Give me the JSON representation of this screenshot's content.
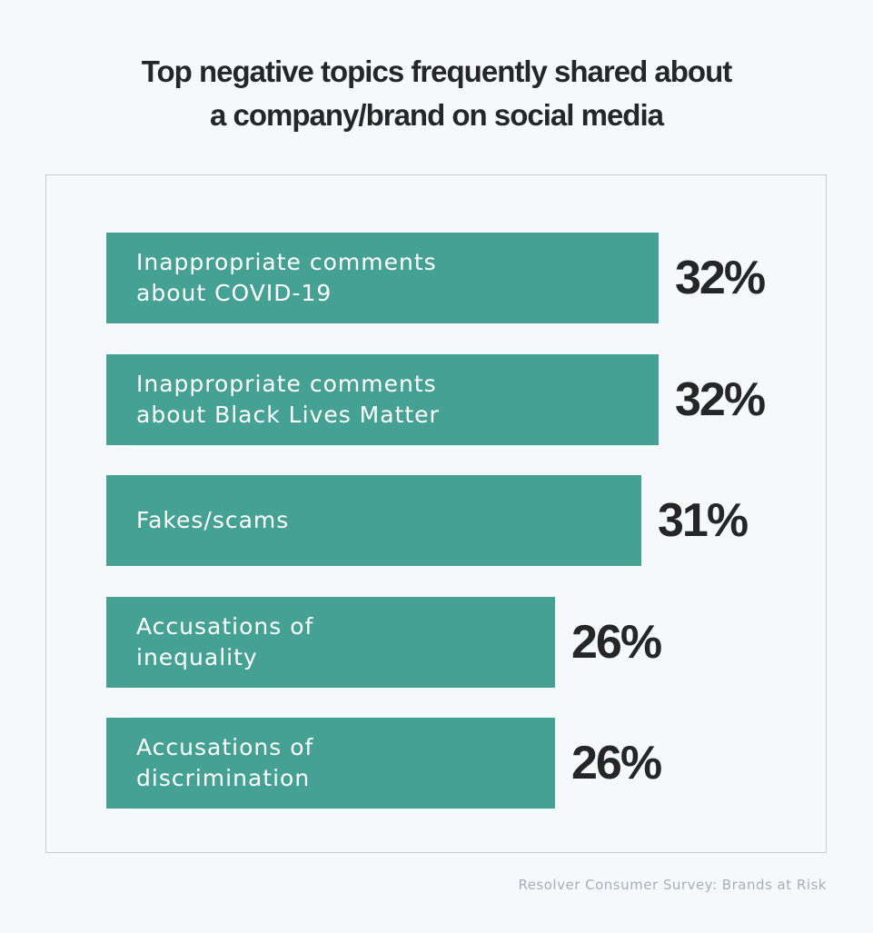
{
  "chart_data": {
    "type": "bar",
    "orientation": "horizontal",
    "title_lines": [
      "Top negative topics frequently shared about",
      "a company/brand on social media"
    ],
    "categories": [
      [
        "Inappropriate comments",
        "about COVID-19"
      ],
      [
        "Inappropriate comments",
        "about Black Lives Matter"
      ],
      [
        "Fakes/scams"
      ],
      [
        "Accusations of",
        "inequality"
      ],
      [
        "Accusations of",
        "discrimination"
      ]
    ],
    "values": [
      32,
      32,
      31,
      26,
      26
    ],
    "value_labels": [
      "32%",
      "32%",
      "31%",
      "26%",
      "26%"
    ],
    "unit": "%",
    "bar_color": "#46a195",
    "text_color": "#262626",
    "xlim": [
      0,
      32
    ],
    "grid": false,
    "legend": "none"
  },
  "source": "Resolver Consumer Survey: Brands at Risk"
}
